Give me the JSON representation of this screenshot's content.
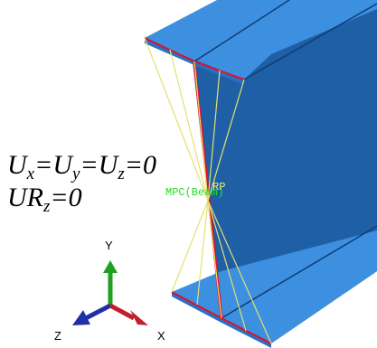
{
  "viewport": {
    "boundary_condition": {
      "line1": [
        "U",
        "x",
        "=U",
        "y",
        "=U",
        "z",
        "=0"
      ],
      "line2": [
        "UR",
        "z",
        "=0"
      ]
    },
    "constraint_label": "MPC(Beam)",
    "reference_point_label": "RP",
    "triad": {
      "y": "Y",
      "z": "Z",
      "x": "X"
    }
  }
}
